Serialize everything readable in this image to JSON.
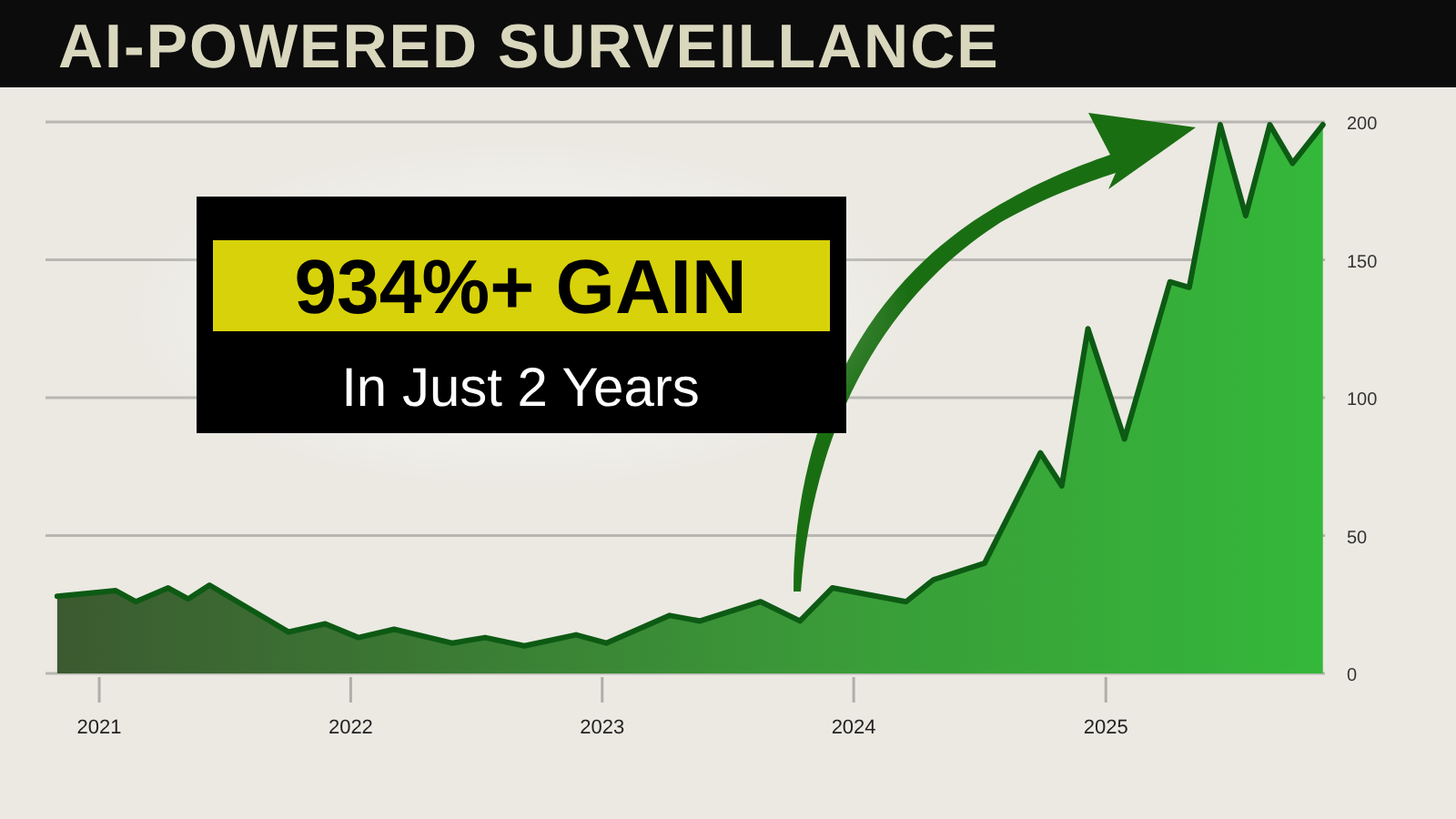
{
  "chart_data": {
    "type": "area",
    "title": "AI-POWERED SURVEILLANCE",
    "annotations": [
      "934%+ GAIN",
      "In Just 2 Years"
    ],
    "x": [
      "2020-11-01",
      "2021-01-25",
      "2021-02-23",
      "2021-04-11",
      "2021-05-10",
      "2021-06-10",
      "2021-10-03",
      "2021-11-25",
      "2022-01-12",
      "2022-03-05",
      "2022-05-28",
      "2022-07-15",
      "2022-09-10",
      "2022-11-24",
      "2023-01-07",
      "2023-04-09",
      "2023-05-23",
      "2023-08-19",
      "2023-10-15",
      "2023-12-01",
      "2024-03-17",
      "2024-04-26",
      "2024-07-09",
      "2024-09-28",
      "2024-10-29",
      "2024-12-06",
      "2025-01-28",
      "2025-04-04",
      "2025-05-02",
      "2025-06-16",
      "2025-07-23",
      "2025-08-27",
      "2025-09-29",
      "2025-11-12"
    ],
    "series": [
      {
        "color": "#0d5a14",
        "values": [
          28,
          30,
          26,
          31,
          27,
          32,
          15,
          18,
          13,
          16,
          11,
          13,
          10,
          14,
          11,
          21,
          19,
          26,
          19,
          31,
          26,
          34,
          40,
          80,
          68,
          125,
          85,
          142,
          140,
          199,
          166,
          199,
          185,
          199
        ]
      }
    ],
    "xlim": [
      "2020-10-15",
      "2025-11-15"
    ],
    "xticks": [
      {
        "value": "2021-01-01",
        "label": "2021"
      },
      {
        "value": "2022-01-01",
        "label": "2022"
      },
      {
        "value": "2023-01-01",
        "label": "2023"
      },
      {
        "value": "2024-01-01",
        "label": "2024"
      },
      {
        "value": "2025-01-01",
        "label": "2025"
      }
    ],
    "ylim": [
      0,
      200
    ],
    "yticks": [
      0,
      50,
      100,
      150,
      200
    ],
    "grid": "y"
  }
}
